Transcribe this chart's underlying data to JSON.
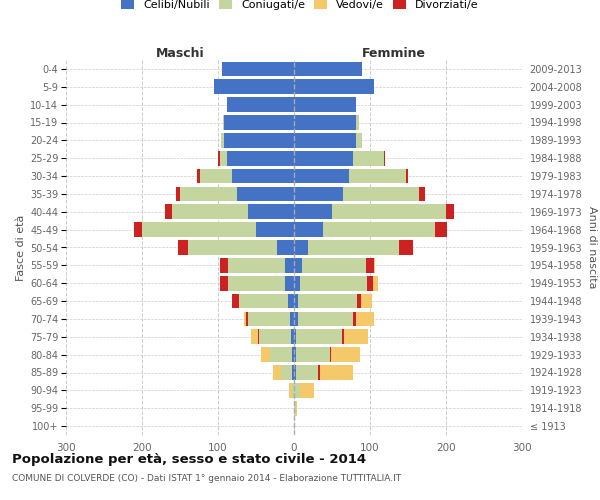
{
  "age_groups": [
    "100+",
    "95-99",
    "90-94",
    "85-89",
    "80-84",
    "75-79",
    "70-74",
    "65-69",
    "60-64",
    "55-59",
    "50-54",
    "45-49",
    "40-44",
    "35-39",
    "30-34",
    "25-29",
    "20-24",
    "15-19",
    "10-14",
    "5-9",
    "0-4"
  ],
  "birth_years": [
    "≤ 1913",
    "1914-1918",
    "1919-1923",
    "1924-1928",
    "1929-1933",
    "1934-1938",
    "1939-1943",
    "1944-1948",
    "1949-1953",
    "1954-1958",
    "1959-1963",
    "1964-1968",
    "1969-1973",
    "1974-1978",
    "1979-1983",
    "1984-1988",
    "1989-1993",
    "1994-1998",
    "1999-2003",
    "2004-2008",
    "2009-2013"
  ],
  "maschi": {
    "celibi": [
      0,
      0,
      0,
      2,
      3,
      4,
      5,
      8,
      12,
      12,
      22,
      50,
      60,
      75,
      82,
      88,
      92,
      92,
      88,
      105,
      95
    ],
    "coniugati": [
      0,
      0,
      3,
      15,
      28,
      42,
      55,
      65,
      75,
      75,
      118,
      150,
      100,
      75,
      42,
      10,
      4,
      2,
      0,
      0,
      0
    ],
    "vedovi": [
      0,
      0,
      4,
      10,
      12,
      10,
      6,
      4,
      3,
      2,
      2,
      2,
      1,
      0,
      0,
      0,
      0,
      0,
      0,
      0,
      0
    ],
    "divorziati": [
      0,
      0,
      0,
      0,
      0,
      2,
      3,
      8,
      10,
      10,
      12,
      10,
      10,
      5,
      3,
      2,
      0,
      0,
      0,
      0,
      0
    ]
  },
  "femmine": {
    "nubili": [
      0,
      0,
      0,
      2,
      2,
      3,
      5,
      5,
      8,
      10,
      18,
      38,
      50,
      65,
      72,
      78,
      82,
      82,
      82,
      105,
      90
    ],
    "coniugate": [
      0,
      2,
      8,
      30,
      45,
      60,
      72,
      78,
      88,
      85,
      120,
      148,
      150,
      100,
      75,
      40,
      8,
      4,
      0,
      0,
      0
    ],
    "vedove": [
      0,
      2,
      18,
      45,
      40,
      35,
      28,
      20,
      15,
      12,
      12,
      4,
      4,
      2,
      0,
      0,
      0,
      0,
      0,
      0,
      0
    ],
    "divorziate": [
      0,
      0,
      0,
      2,
      2,
      3,
      4,
      5,
      8,
      10,
      18,
      15,
      10,
      8,
      3,
      2,
      0,
      0,
      0,
      0,
      0
    ]
  },
  "colors": {
    "celibi": "#4472C4",
    "coniugati": "#C5D5A0",
    "vedovi": "#F5C86A",
    "divorziati": "#CC2222"
  },
  "xlim": 300,
  "title": "Popolazione per età, sesso e stato civile - 2014",
  "subtitle": "COMUNE DI COLVERDE (CO) - Dati ISTAT 1° gennaio 2014 - Elaborazione TUTTITALIA.IT",
  "ylabel_left": "Fasce di età",
  "ylabel_right": "Anni di nascita",
  "label_maschi": "Maschi",
  "label_femmine": "Femmine",
  "legend_labels": [
    "Celibi/Nubili",
    "Coniugati/e",
    "Vedovi/e",
    "Divorziati/e"
  ],
  "bg_color": "#ffffff",
  "grid_color": "#cccccc"
}
